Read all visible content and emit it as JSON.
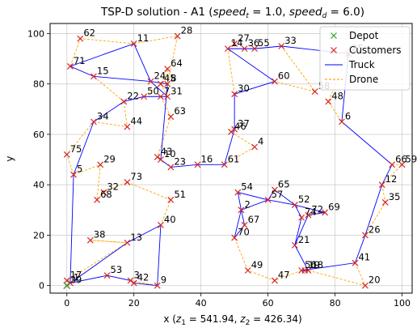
{
  "chart_data": {
    "type": "scatter",
    "title_main": "TSP-D solution - A1 (",
    "title_speed_t": "speed",
    "title_sub_t": "t",
    "title_val_t": " = 1.0, ",
    "title_speed_d": "speed",
    "title_sub_d": "d",
    "title_val_d": " = 6.0)",
    "xlabel_prefix": "x (",
    "xlabel_z1": "z",
    "xlabel_sub1": "1",
    "xlabel_val1": " = 541.94, ",
    "xlabel_z2": "z",
    "xlabel_sub2": "2",
    "xlabel_val2": " = 426.34)",
    "ylabel": "y",
    "xlim": [
      -5,
      103
    ],
    "ylim": [
      -3,
      104
    ],
    "xticks": [
      0,
      20,
      40,
      60,
      80,
      100
    ],
    "yticks": [
      0,
      20,
      40,
      60,
      80,
      100
    ],
    "grid": true,
    "legend_position": "top-right",
    "legend": [
      {
        "label": "Depot",
        "marker": "x",
        "color": "#2ca02c"
      },
      {
        "label": "Customers",
        "marker": "x",
        "color": "#d62728"
      },
      {
        "label": "Truck",
        "marker": "line",
        "color": "#0000ff"
      },
      {
        "label": "Drone",
        "marker": "dashed",
        "color": "#ff8c00"
      }
    ],
    "depot": {
      "x": 0,
      "y": 0
    },
    "customers": [
      {
        "id": 1,
        "x": 1,
        "y": 1
      },
      {
        "id": 2,
        "x": 52,
        "y": 30
      },
      {
        "id": 3,
        "x": 19,
        "y": 2
      },
      {
        "id": 4,
        "x": 56,
        "y": 55
      },
      {
        "id": 5,
        "x": 2,
        "y": 44
      },
      {
        "id": 6,
        "x": 82,
        "y": 65
      },
      {
        "id": 7,
        "x": 28,
        "y": 75
      },
      {
        "id": 8,
        "x": 30,
        "y": 80
      },
      {
        "id": 9,
        "x": 27,
        "y": 0
      },
      {
        "id": 10,
        "x": 28,
        "y": 50
      },
      {
        "id": 11,
        "x": 20,
        "y": 96
      },
      {
        "id": 12,
        "x": 94,
        "y": 40
      },
      {
        "id": 13,
        "x": 18,
        "y": 17
      },
      {
        "id": 14,
        "x": 48,
        "y": 94
      },
      {
        "id": 15,
        "x": 8,
        "y": 83
      },
      {
        "id": 16,
        "x": 39,
        "y": 48
      },
      {
        "id": 17,
        "x": 0,
        "y": 2
      },
      {
        "id": 18,
        "x": 72,
        "y": 6
      },
      {
        "id": 19,
        "x": 71,
        "y": 6
      },
      {
        "id": 20,
        "x": 89,
        "y": 0
      },
      {
        "id": 21,
        "x": 68,
        "y": 16
      },
      {
        "id": 22,
        "x": 17,
        "y": 73
      },
      {
        "id": 23,
        "x": 31,
        "y": 47
      },
      {
        "id": 24,
        "x": 25,
        "y": 81
      },
      {
        "id": 25,
        "x": 84,
        "y": 92
      },
      {
        "id": 26,
        "x": 89,
        "y": 20
      },
      {
        "id": 27,
        "x": 50,
        "y": 96
      },
      {
        "id": 28,
        "x": 33,
        "y": 99
      },
      {
        "id": 29,
        "x": 10,
        "y": 48
      },
      {
        "id": 30,
        "x": 50,
        "y": 76
      },
      {
        "id": 31,
        "x": 30,
        "y": 75
      },
      {
        "id": 32,
        "x": 11,
        "y": 37
      },
      {
        "id": 33,
        "x": 64,
        "y": 95
      },
      {
        "id": 34,
        "x": 8,
        "y": 65
      },
      {
        "id": 35,
        "x": 95,
        "y": 33
      },
      {
        "id": 36,
        "x": 53,
        "y": 94
      },
      {
        "id": 37,
        "x": 50,
        "y": 62
      },
      {
        "id": 38,
        "x": 7,
        "y": 18
      },
      {
        "id": 39,
        "x": 0,
        "y": 0
      },
      {
        "id": 40,
        "x": 28,
        "y": 24
      },
      {
        "id": 41,
        "x": 86,
        "y": 9
      },
      {
        "id": 42,
        "x": 20,
        "y": 1
      },
      {
        "id": 43,
        "x": 27,
        "y": 51
      },
      {
        "id": 44,
        "x": 18,
        "y": 63
      },
      {
        "id": 45,
        "x": 28,
        "y": 80
      },
      {
        "id": 46,
        "x": 49,
        "y": 61
      },
      {
        "id": 47,
        "x": 62,
        "y": 2
      },
      {
        "id": 48,
        "x": 78,
        "y": 73
      },
      {
        "id": 49,
        "x": 54,
        "y": 6
      },
      {
        "id": 50,
        "x": 23,
        "y": 75
      },
      {
        "id": 51,
        "x": 31,
        "y": 34
      },
      {
        "id": 52,
        "x": 68,
        "y": 32
      },
      {
        "id": 53,
        "x": 12,
        "y": 4
      },
      {
        "id": 54,
        "x": 51,
        "y": 37
      },
      {
        "id": 55,
        "x": 56,
        "y": 94
      },
      {
        "id": 56,
        "x": 70,
        "y": 6
      },
      {
        "id": 57,
        "x": 60,
        "y": 34
      },
      {
        "id": 58,
        "x": 74,
        "y": 77
      },
      {
        "id": 59,
        "x": 100,
        "y": 48
      },
      {
        "id": 60,
        "x": 62,
        "y": 81
      },
      {
        "id": 61,
        "x": 47,
        "y": 48
      },
      {
        "id": 62,
        "x": 4,
        "y": 98
      },
      {
        "id": 63,
        "x": 31,
        "y": 67
      },
      {
        "id": 64,
        "x": 30,
        "y": 86
      },
      {
        "id": 65,
        "x": 62,
        "y": 38
      },
      {
        "id": 66,
        "x": 97,
        "y": 48
      },
      {
        "id": 67,
        "x": 53,
        "y": 24
      },
      {
        "id": 68,
        "x": 9,
        "y": 34
      },
      {
        "id": 69,
        "x": 77,
        "y": 29
      },
      {
        "id": 70,
        "x": 50,
        "y": 19
      },
      {
        "id": 71,
        "x": 1,
        "y": 87
      },
      {
        "id": 72,
        "x": 72,
        "y": 28
      },
      {
        "id": 73,
        "x": 18,
        "y": 41
      },
      {
        "id": 74,
        "x": 70,
        "y": 27
      },
      {
        "id": 75,
        "x": 0,
        "y": 52
      }
    ],
    "truck_route": [
      0,
      39,
      1,
      53,
      3,
      42,
      9,
      40,
      13,
      1,
      5,
      34,
      22,
      50,
      7,
      31,
      24,
      11,
      71,
      15,
      24,
      8,
      10,
      43,
      23,
      16,
      61,
      37,
      30,
      60,
      14,
      55,
      33,
      25,
      6,
      66,
      12,
      26,
      41,
      56,
      19,
      18,
      21,
      74,
      52,
      57,
      2,
      70,
      67,
      2,
      54,
      57,
      65,
      52,
      69,
      72,
      21
    ],
    "drone_sorties": [
      [
        13,
        38,
        13
      ],
      [
        3,
        53,
        3
      ],
      [
        3,
        9,
        3
      ],
      [
        5,
        75,
        34
      ],
      [
        5,
        29,
        68
      ],
      [
        68,
        32,
        73
      ],
      [
        73,
        51,
        40
      ],
      [
        34,
        44,
        22
      ],
      [
        22,
        15,
        71
      ],
      [
        71,
        62,
        11
      ],
      [
        11,
        28,
        8
      ],
      [
        8,
        64,
        45
      ],
      [
        7,
        63,
        43
      ],
      [
        43,
        10,
        23
      ],
      [
        61,
        4,
        46
      ],
      [
        30,
        14,
        27
      ],
      [
        33,
        58,
        60
      ],
      [
        25,
        48,
        6
      ],
      [
        66,
        59,
        12
      ],
      [
        12,
        35,
        26
      ],
      [
        41,
        20,
        18
      ],
      [
        56,
        47,
        49
      ],
      [
        49,
        70,
        67
      ],
      [
        52,
        69,
        74
      ],
      [
        31,
        45,
        50
      ],
      [
        1,
        17,
        13
      ]
    ]
  }
}
